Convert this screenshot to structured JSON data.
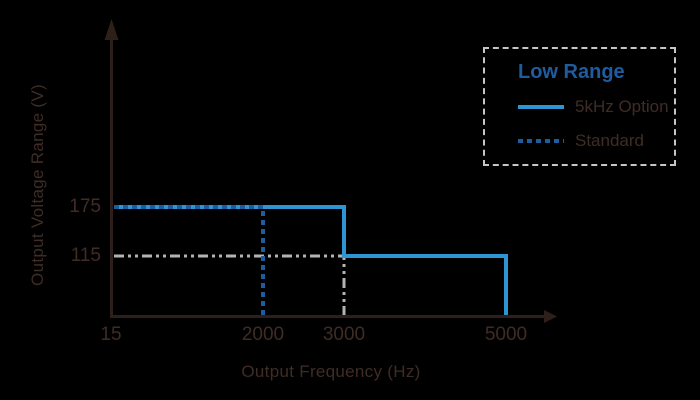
{
  "page": {
    "background": "#000000"
  },
  "chart_data": {
    "type": "line",
    "title": "",
    "xlabel": "Output Frequency (Hz)",
    "ylabel": "Output Voltage Range (V)",
    "x_tick_labels": [
      "15",
      "2000",
      "3000",
      "5000"
    ],
    "y_tick_labels": [
      "175",
      "115"
    ],
    "x_range": [
      15,
      5000
    ],
    "y_range": [
      0,
      200
    ],
    "grid": false,
    "axis_color": "#2e1f1a",
    "text_color": "#3f2c25",
    "legend": {
      "title": "Low Range",
      "title_color": "#1f5c9f",
      "border_color": "#c6c6c6",
      "position": "top-right"
    },
    "series": [
      {
        "name": "5kHz Option",
        "style": "solid",
        "color": "#2e95d3",
        "points": [
          [
            15,
            175
          ],
          [
            3000,
            175
          ],
          [
            3000,
            115
          ],
          [
            5000,
            115
          ],
          [
            5000,
            0
          ]
        ]
      },
      {
        "name": "Standard",
        "style": "dashed",
        "color": "#1f5c9f",
        "points": [
          [
            15,
            175
          ],
          [
            2000,
            175
          ],
          [
            2000,
            0
          ]
        ]
      }
    ],
    "guides": [
      {
        "name": "115V-at-3000Hz-reference",
        "style": "dash-dot",
        "color": "#b3b3b3",
        "points": [
          [
            15,
            115
          ],
          [
            3000,
            115
          ],
          [
            3000,
            0
          ]
        ]
      }
    ]
  }
}
